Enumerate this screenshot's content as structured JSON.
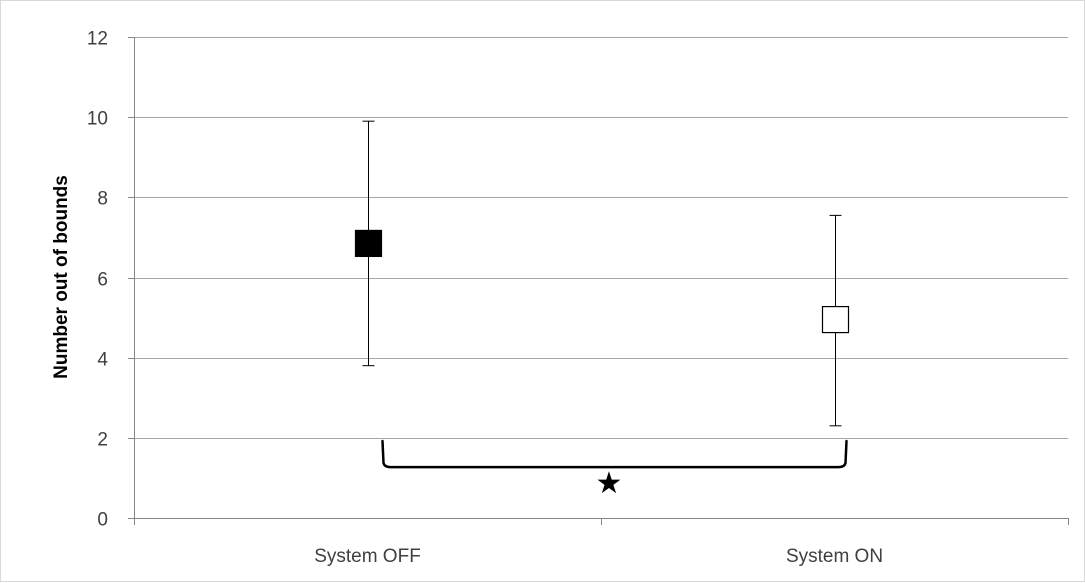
{
  "chart_data": {
    "type": "scatter",
    "title": "",
    "xlabel": "",
    "ylabel": "Number out of bounds",
    "categories": [
      "System OFF",
      "System ON"
    ],
    "ylim": [
      0,
      12
    ],
    "yticks": [
      0,
      2,
      4,
      6,
      8,
      10,
      12
    ],
    "grid": "horizontal",
    "legend": "none",
    "series": [
      {
        "points": [
          {
            "category": "System OFF",
            "mean": 6.85,
            "error_low": 3.8,
            "error_high": 9.9,
            "marker": "filled-square"
          },
          {
            "category": "System ON",
            "mean": 4.95,
            "error_low": 2.3,
            "error_high": 7.55,
            "marker": "open-square"
          }
        ]
      }
    ],
    "annotations": [
      {
        "type": "significance-bracket",
        "from": "System OFF",
        "to": "System ON",
        "symbol": "★"
      }
    ]
  },
  "colors": {
    "grid": "#a6a6a6",
    "axis": "#868686",
    "marker": "#000000",
    "text": "#404040"
  }
}
